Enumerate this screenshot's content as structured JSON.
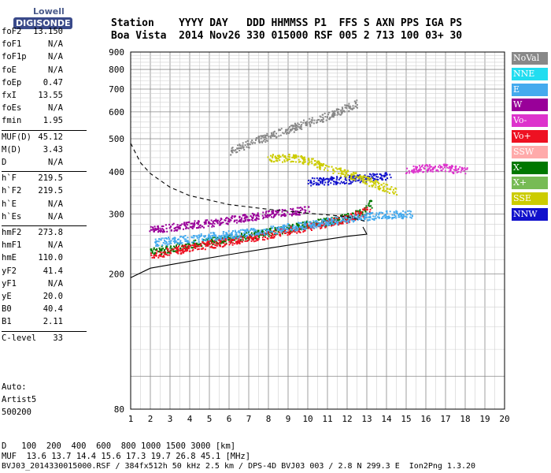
{
  "logo": {
    "line1": "Lowell",
    "line2": "DIGISONDE"
  },
  "header": {
    "row1": "Station    YYYY DAY   DDD HHMMSS P1  FFS S AXN PPS IGA PS",
    "row2": "Boa Vista  2014 Nov26 330 015000 RSF 005 2 713 100 03+ 30"
  },
  "params": [
    {
      "name": "foF2",
      "value": "13.150"
    },
    {
      "name": "foF1",
      "value": "N/A"
    },
    {
      "name": "foF1p",
      "value": "N/A"
    },
    {
      "name": "foE",
      "value": "N/A"
    },
    {
      "name": "foEp",
      "value": "0.47"
    },
    {
      "name": "fxI",
      "value": "13.55"
    },
    {
      "name": "foEs",
      "value": "N/A"
    },
    {
      "name": "fmin",
      "value": "1.95"
    },
    {
      "name": "MUF(D)",
      "value": "45.12"
    },
    {
      "name": "M(D)",
      "value": "3.43"
    },
    {
      "name": "D",
      "value": "N/A"
    },
    {
      "name": "h`F",
      "value": "219.5"
    },
    {
      "name": "h`F2",
      "value": "219.5"
    },
    {
      "name": "h`E",
      "value": "N/A"
    },
    {
      "name": "h`Es",
      "value": "N/A"
    },
    {
      "name": "hmF2",
      "value": "273.8"
    },
    {
      "name": "hmF1",
      "value": "N/A"
    },
    {
      "name": "hmE",
      "value": "110.0"
    },
    {
      "name": "yF2",
      "value": "41.4"
    },
    {
      "name": "yF1",
      "value": "N/A"
    },
    {
      "name": "yE",
      "value": "20.0"
    },
    {
      "name": "B0",
      "value": "40.4"
    },
    {
      "name": "B1",
      "value": "2.11"
    },
    {
      "name": "C-level",
      "value": "33"
    }
  ],
  "autoscale": {
    "line1": "Auto:",
    "line2": "Artist5",
    "line3": "500200"
  },
  "legend": [
    {
      "label": "NoVal",
      "color": "#888888"
    },
    {
      "label": "NNE",
      "color": "#22ddf0"
    },
    {
      "label": "E",
      "color": "#44aaee"
    },
    {
      "label": "W",
      "color": "#990099"
    },
    {
      "label": "Vo-",
      "color": "#dd33cc"
    },
    {
      "label": "Vo+",
      "color": "#ee1122"
    },
    {
      "label": "SSW",
      "color": "#ffaaaa"
    },
    {
      "label": "X-",
      "color": "#007700"
    },
    {
      "label": "X+",
      "color": "#77bb55"
    },
    {
      "label": "SSE",
      "color": "#cccc00"
    },
    {
      "label": "NNW",
      "color": "#1111cc"
    }
  ],
  "bottom": {
    "line1": "D   100  200  400  600  800 1000 1500 3000 [km]",
    "line2": "MUF  13.6 13.7 14.4 15.6 17.3 19.7 26.8 45.1 [MHz]",
    "line3": "BVJ03_2014330015000.RSF / 384fx512h 50 kHz 2.5 km / DPS-4D BVJ03 003 / 2.8 N 299.3 E  Ion2Png 1.3.20"
  },
  "chart_data": {
    "type": "scatter",
    "xlim": [
      1,
      20
    ],
    "ylim": [
      80,
      900
    ],
    "xticks": [
      1,
      2,
      3,
      4,
      5,
      6,
      7,
      8,
      9,
      10,
      11,
      12,
      13,
      14,
      15,
      16,
      17,
      18,
      19,
      20
    ],
    "yticks": [
      80,
      200,
      300,
      400,
      500,
      600,
      700,
      800,
      900
    ],
    "grid": true,
    "minor_grid_x": 0.5,
    "minor_grid_y": 20,
    "y_scale": "log",
    "series": [
      {
        "name": "X-",
        "color": "#007700",
        "trace": [
          [
            2.0,
            232
          ],
          [
            4,
            245
          ],
          [
            6,
            255
          ],
          [
            8,
            266
          ],
          [
            10,
            280
          ],
          [
            11.5,
            290
          ],
          [
            12.8,
            305
          ],
          [
            13.2,
            325
          ]
        ]
      },
      {
        "name": "Vo+",
        "color": "#ee1122",
        "trace": [
          [
            2.0,
            228
          ],
          [
            4,
            240
          ],
          [
            6,
            250
          ],
          [
            8,
            262
          ],
          [
            10,
            276
          ],
          [
            12,
            292
          ],
          [
            13.1,
            310
          ]
        ]
      },
      {
        "name": "E",
        "color": "#44aaee",
        "trace": [
          [
            2.2,
            248
          ],
          [
            4,
            255
          ],
          [
            6,
            262
          ],
          [
            8,
            270
          ],
          [
            10,
            280
          ],
          [
            12,
            292
          ],
          [
            14,
            300
          ],
          [
            15.3,
            300
          ]
        ]
      },
      {
        "name": "W",
        "color": "#990099",
        "trace": [
          [
            2.0,
            270
          ],
          [
            3,
            275
          ],
          [
            4,
            280
          ],
          [
            5,
            283
          ],
          [
            6,
            290
          ],
          [
            8,
            300
          ],
          [
            10,
            310
          ]
        ]
      },
      {
        "name": "NNW",
        "color": "#1111cc",
        "trace": [
          [
            10,
            375
          ],
          [
            12,
            380
          ],
          [
            13,
            385
          ],
          [
            14.2,
            392
          ]
        ]
      },
      {
        "name": "Vo-",
        "color": "#dd33cc",
        "trace": [
          [
            15,
            405
          ],
          [
            16,
            412
          ],
          [
            17,
            412
          ],
          [
            18,
            402
          ]
        ]
      },
      {
        "name": "NoVal",
        "color": "#888888",
        "trace": [
          [
            6,
            460
          ],
          [
            8,
            510
          ],
          [
            10,
            560
          ],
          [
            11.5,
            600
          ],
          [
            12.5,
            640
          ]
        ]
      },
      {
        "name": "SSE",
        "color": "#cccc00",
        "trace": [
          [
            8,
            440
          ],
          [
            9.5,
            440
          ],
          [
            14.5,
            350
          ]
        ]
      }
    ],
    "profile_solid": [
      [
        1,
        195
      ],
      [
        2,
        208
      ],
      [
        4,
        218
      ],
      [
        6,
        228
      ],
      [
        8,
        238
      ],
      [
        10,
        248
      ],
      [
        12,
        258
      ],
      [
        13,
        262
      ],
      [
        12.8,
        275
      ]
    ],
    "profile_dashed": [
      [
        1,
        485
      ],
      [
        1.5,
        425
      ],
      [
        2,
        395
      ],
      [
        3,
        360
      ],
      [
        4,
        340
      ],
      [
        5,
        330
      ],
      [
        6,
        320
      ],
      [
        8,
        310
      ],
      [
        10,
        302
      ],
      [
        12,
        295
      ],
      [
        13,
        285
      ]
    ]
  }
}
